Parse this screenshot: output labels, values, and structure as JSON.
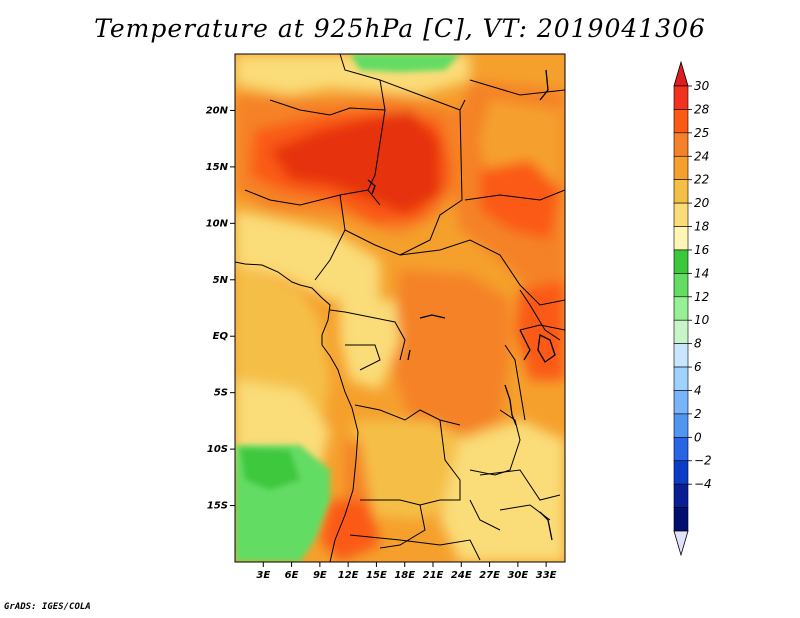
{
  "title": "Temperature at 925hPa [C], VT: 2019041306",
  "footer": "GrADS: IGES/COLA",
  "map": {
    "variable": "Temperature at 925hPa",
    "units": "C",
    "valid_time": "2019041306",
    "region": "Central Africa",
    "lon_range": [
      0,
      35
    ],
    "lat_range": [
      -20,
      25
    ]
  },
  "lat_ticks": [
    {
      "value": 20,
      "label": "20N"
    },
    {
      "value": 15,
      "label": "15N"
    },
    {
      "value": 10,
      "label": "10N"
    },
    {
      "value": 5,
      "label": "5N"
    },
    {
      "value": 0,
      "label": "EQ"
    },
    {
      "value": -5,
      "label": "5S"
    },
    {
      "value": -10,
      "label": "10S"
    },
    {
      "value": -15,
      "label": "15S"
    }
  ],
  "lon_ticks": [
    {
      "value": 3,
      "label": "3E"
    },
    {
      "value": 6,
      "label": "6E"
    },
    {
      "value": 9,
      "label": "9E"
    },
    {
      "value": 12,
      "label": "12E"
    },
    {
      "value": 15,
      "label": "15E"
    },
    {
      "value": 18,
      "label": "18E"
    },
    {
      "value": 21,
      "label": "21E"
    },
    {
      "value": 24,
      "label": "24E"
    },
    {
      "value": 27,
      "label": "27E"
    },
    {
      "value": 30,
      "label": "30E"
    },
    {
      "value": 33,
      "label": "33E"
    }
  ],
  "colorbar": {
    "labels": [
      "30",
      "28",
      "25",
      "24",
      "22",
      "20",
      "18",
      "16",
      "14",
      "12",
      "10",
      "8",
      "6",
      "4",
      "2",
      "0",
      "−2",
      "−4"
    ],
    "colors": [
      "#f0321e",
      "#fa5a14",
      "#f58228",
      "#f5a02d",
      "#f5bf46",
      "#fadc78",
      "#fff5b4",
      "#3cc83c",
      "#64dc64",
      "#96f096",
      "#c8f5c8",
      "#c8e6ff",
      "#a0d2ff",
      "#78b4fa",
      "#5096f0",
      "#2864e6",
      "#0a3cc8",
      "#0a1e96",
      "#00106e"
    ],
    "top_arrow_color": "#dc1e1e",
    "bottom_arrow_color": "#e0e0ff"
  }
}
